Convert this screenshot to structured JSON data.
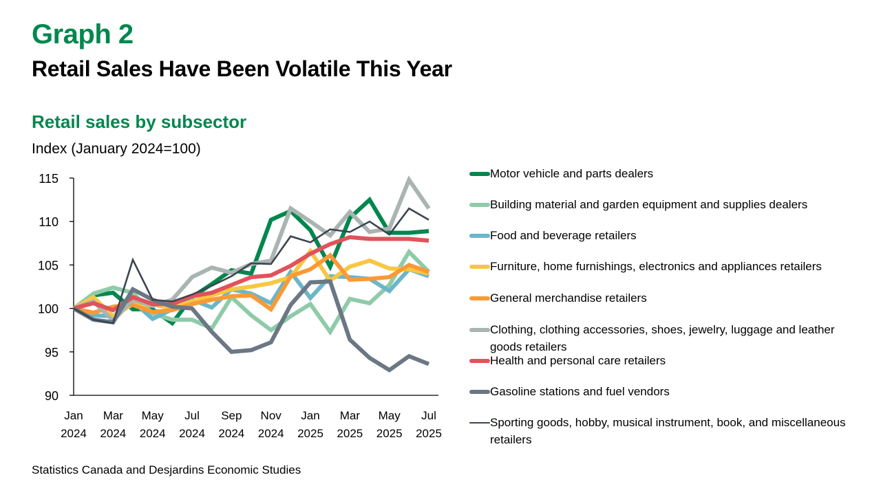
{
  "header": {
    "graph_label": "Graph 2",
    "title": "Retail Sales Have Been Volatile This Year",
    "subtitle": "Retail sales by subsector",
    "unit": "Index (January 2024=100)"
  },
  "source": "Statistics Canada and Desjardins Economic Studies",
  "chart_data": {
    "type": "line",
    "title": "Retail sales by subsector",
    "ylabel": "Index (January 2024=100)",
    "xlabel": "",
    "ylim": [
      90,
      115
    ],
    "yticks": [
      90,
      95,
      100,
      105,
      110,
      115
    ],
    "grid": false,
    "legend_position": "right",
    "x": [
      "Jan 2024",
      "Feb 2024",
      "Mar 2024",
      "Apr 2024",
      "May 2024",
      "Jun 2024",
      "Jul 2024",
      "Aug 2024",
      "Sep 2024",
      "Oct 2024",
      "Nov 2024",
      "Dec 2024",
      "Jan 2025",
      "Feb 2025",
      "Mar 2025",
      "Apr 2025",
      "May 2025",
      "Jun 2025",
      "Jul 2025"
    ],
    "xtick_labels": [
      {
        "index": 0,
        "month": "Jan",
        "year": "2024"
      },
      {
        "index": 2,
        "month": "Mar",
        "year": "2024"
      },
      {
        "index": 4,
        "month": "May",
        "year": "2024"
      },
      {
        "index": 6,
        "month": "Jul",
        "year": "2024"
      },
      {
        "index": 8,
        "month": "Sep",
        "year": "2024"
      },
      {
        "index": 10,
        "month": "Nov",
        "year": "2024"
      },
      {
        "index": 12,
        "month": "Jan",
        "year": "2025"
      },
      {
        "index": 14,
        "month": "Mar",
        "year": "2025"
      },
      {
        "index": 16,
        "month": "May",
        "year": "2025"
      },
      {
        "index": 18,
        "month": "Jul",
        "year": "2025"
      }
    ],
    "series": [
      {
        "name": "Motor vehicle and parts dealers",
        "color": "#00874e",
        "weight": "thick",
        "values": [
          100,
          101.5,
          101.8,
          99.9,
          99.9,
          98.3,
          101.3,
          102.8,
          104.4,
          104.0,
          110.2,
          111.2,
          109.0,
          104.8,
          110.4,
          112.5,
          108.7,
          108.7,
          108.9
        ]
      },
      {
        "name": "Building material and garden equipment and supplies dealers",
        "color": "#8fcba9",
        "weight": "thick",
        "values": [
          100,
          101.7,
          102.4,
          101.8,
          99.4,
          98.7,
          98.7,
          97.7,
          101.3,
          99.2,
          97.5,
          99.1,
          100.5,
          97.3,
          101.1,
          100.6,
          102.7,
          106.5,
          104.2
        ]
      },
      {
        "name": "Food and beverage retailers",
        "color": "#6bb6c8",
        "weight": "thick",
        "values": [
          100,
          99.2,
          99.1,
          100.8,
          98.8,
          99.9,
          101.0,
          100.1,
          102.2,
          101.7,
          100.6,
          104.2,
          101.2,
          103.7,
          103.6,
          103.4,
          102.0,
          104.5,
          103.7
        ]
      },
      {
        "name": "Furniture, home furnishings, electronics and appliances retailers",
        "color": "#f7c744",
        "weight": "thick",
        "values": [
          100,
          101.3,
          99.1,
          100.5,
          100.4,
          100.1,
          100.8,
          101.5,
          102.2,
          102.5,
          102.9,
          103.6,
          106.6,
          103.2,
          104.8,
          105.5,
          104.6,
          104.5,
          104.0
        ]
      },
      {
        "name": "General merchandise retailers",
        "color": "#f99a36",
        "weight": "thick",
        "values": [
          100,
          99.5,
          100.2,
          100.4,
          99.6,
          99.8,
          100.5,
          101.0,
          101.4,
          101.5,
          99.9,
          103.7,
          104.5,
          106.1,
          103.3,
          103.4,
          103.6,
          105.0,
          104.2
        ]
      },
      {
        "name": "Clothing, clothing accessories, shoes, jewelry, luggage and leather goods retailers",
        "color": "#aab4b1",
        "weight": "thick",
        "values": [
          100,
          100.8,
          98.6,
          101.0,
          100.3,
          101.0,
          103.6,
          104.7,
          104.1,
          105.1,
          105.5,
          111.5,
          110.0,
          108.4,
          111.1,
          108.8,
          109.2,
          114.8,
          111.5
        ]
      },
      {
        "name": "Health and personal care retailers",
        "color": "#e0535b",
        "weight": "thick",
        "values": [
          100,
          100.6,
          99.8,
          101.3,
          100.5,
          100.5,
          101.4,
          101.8,
          102.7,
          103.6,
          103.8,
          104.9,
          106.3,
          107.4,
          108.2,
          108.0,
          108.0,
          108.0,
          107.8
        ]
      },
      {
        "name": "Gasoline stations and fuel vendors",
        "color": "#6b7784",
        "weight": "thick",
        "values": [
          100,
          98.7,
          98.4,
          102.2,
          101.0,
          100.2,
          100.0,
          97.3,
          95.0,
          95.2,
          96.1,
          100.4,
          103.0,
          103.1,
          96.4,
          94.3,
          92.9,
          94.5,
          93.6
        ]
      },
      {
        "name": "Sporting goods, hobby, musical instrument, book, and miscellaneous retailers",
        "color": "#3c4550",
        "weight": "thin",
        "values": [
          100,
          98.7,
          98.3,
          105.6,
          101.0,
          100.8,
          101.6,
          102.6,
          103.7,
          105.2,
          105.1,
          108.3,
          107.6,
          109.1,
          108.8,
          110.0,
          108.5,
          111.5,
          110.2
        ]
      }
    ]
  }
}
